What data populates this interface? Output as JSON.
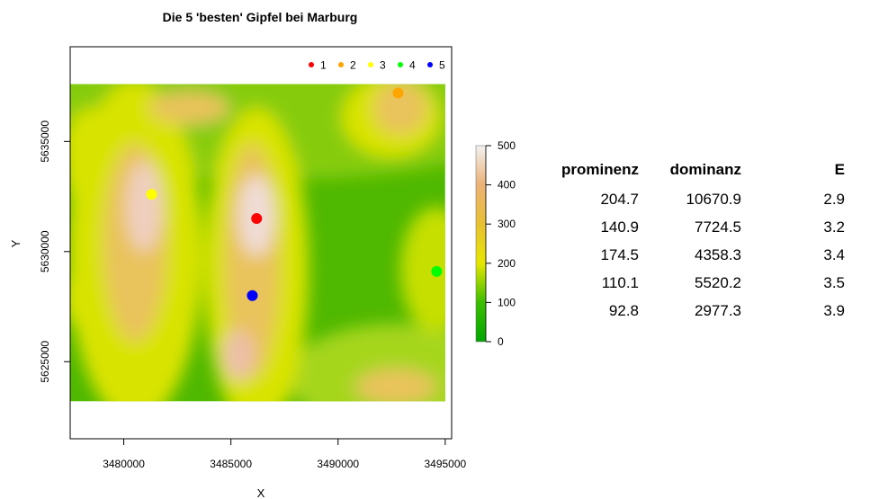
{
  "chart_data": {
    "type": "heatmap",
    "title": "Die 5 'besten' Gipfel bei Marburg",
    "xlabel": "X",
    "ylabel": "Y",
    "xlim": [
      3477500,
      3495300
    ],
    "ylim": [
      5621500,
      5639300
    ],
    "raster_extent": {
      "x": [
        3477500,
        3495000
      ],
      "y": [
        5623200,
        5637600
      ]
    },
    "x_ticks": [
      {
        "value": 3480000,
        "label": "3480000"
      },
      {
        "value": 3485000,
        "label": "3485000"
      },
      {
        "value": 3490000,
        "label": "3490000"
      },
      {
        "value": 3495000,
        "label": "3495000"
      }
    ],
    "y_ticks": [
      {
        "value": 5625000,
        "label": "5625000"
      },
      {
        "value": 5630000,
        "label": "5630000"
      },
      {
        "value": 5635000,
        "label": "5635000"
      }
    ],
    "colorbar": {
      "min": 0,
      "max": 500,
      "ticks": [
        {
          "value": 0,
          "label": "0"
        },
        {
          "value": 100,
          "label": "100"
        },
        {
          "value": 200,
          "label": "200"
        },
        {
          "value": 300,
          "label": "300"
        },
        {
          "value": 400,
          "label": "400"
        },
        {
          "value": 500,
          "label": "500"
        }
      ]
    },
    "legend_position": "top-right",
    "peaks": [
      {
        "label": "1",
        "x": 3486200,
        "y": 5631500,
        "color": "#ff0000"
      },
      {
        "label": "2",
        "x": 3492800,
        "y": 5637200,
        "color": "#ffa500"
      },
      {
        "label": "3",
        "x": 3481300,
        "y": 5632600,
        "color": "#ffff00"
      },
      {
        "label": "4",
        "x": 3494600,
        "y": 5629100,
        "color": "#00ff00"
      },
      {
        "label": "5",
        "x": 3486000,
        "y": 5628000,
        "color": "#0000ff"
      }
    ]
  },
  "table": {
    "headers": [
      "prominenz",
      "dominanz",
      "E"
    ],
    "rows": [
      [
        "204.7",
        "10670.9",
        "2.9"
      ],
      [
        "140.9",
        "7724.5",
        "3.2"
      ],
      [
        "174.5",
        "4358.3",
        "3.4"
      ],
      [
        "110.1",
        "5520.2",
        "3.5"
      ],
      [
        "92.8",
        "2977.3",
        "3.9"
      ]
    ]
  }
}
